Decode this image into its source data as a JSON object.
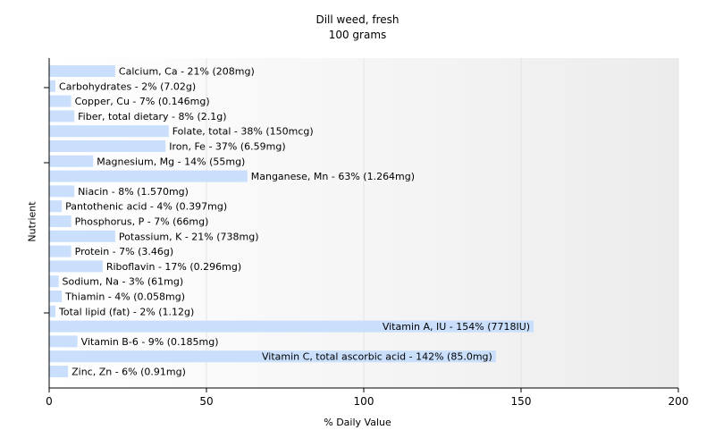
{
  "chart_data": {
    "type": "bar",
    "orientation": "horizontal",
    "title": "Dill weed, fresh",
    "subtitle": "100 grams",
    "xlabel": "% Daily Value",
    "ylabel": "Nutrient",
    "xlim": [
      0,
      200
    ],
    "xticks": [
      "0",
      "50",
      "100",
      "150",
      "200"
    ],
    "grid": false,
    "bar_color": "#c9dffb",
    "categories": [
      "Calcium, Ca",
      "Carbohydrates",
      "Copper, Cu",
      "Fiber, total dietary",
      "Folate, total",
      "Iron, Fe",
      "Magnesium, Mg",
      "Manganese, Mn",
      "Niacin",
      "Pantothenic acid",
      "Phosphorus, P",
      "Potassium, K",
      "Protein",
      "Riboflavin",
      "Sodium, Na",
      "Thiamin",
      "Total lipid (fat)",
      "Vitamin A, IU",
      "Vitamin B-6",
      "Vitamin C, total ascorbic acid",
      "Zinc, Zn"
    ],
    "values": [
      21,
      2,
      7,
      8,
      38,
      37,
      14,
      63,
      8,
      4,
      7,
      21,
      7,
      17,
      3,
      4,
      2,
      154,
      9,
      142,
      6
    ],
    "labels": [
      "Calcium, Ca - 21% (208mg)",
      "Carbohydrates - 2% (7.02g)",
      "Copper, Cu - 7% (0.146mg)",
      "Fiber, total dietary - 8% (2.1g)",
      "Folate, total - 38% (150mcg)",
      "Iron, Fe - 37% (6.59mg)",
      "Magnesium, Mg - 14% (55mg)",
      "Manganese, Mn - 63% (1.264mg)",
      "Niacin - 8% (1.570mg)",
      "Pantothenic acid - 4% (0.397mg)",
      "Phosphorus, P - 7% (66mg)",
      "Potassium, K - 21% (738mg)",
      "Protein - 7% (3.46g)",
      "Riboflavin - 17% (0.296mg)",
      "Sodium, Na - 3% (61mg)",
      "Thiamin - 4% (0.058mg)",
      "Total lipid (fat) - 2% (1.12g)",
      "Vitamin A, IU - 154% (7718IU)",
      "Vitamin B-6 - 9% (0.185mg)",
      "Vitamin C, total ascorbic acid - 142% (85.0mg)",
      "Zinc, Zn - 6% (0.91mg)"
    ]
  }
}
